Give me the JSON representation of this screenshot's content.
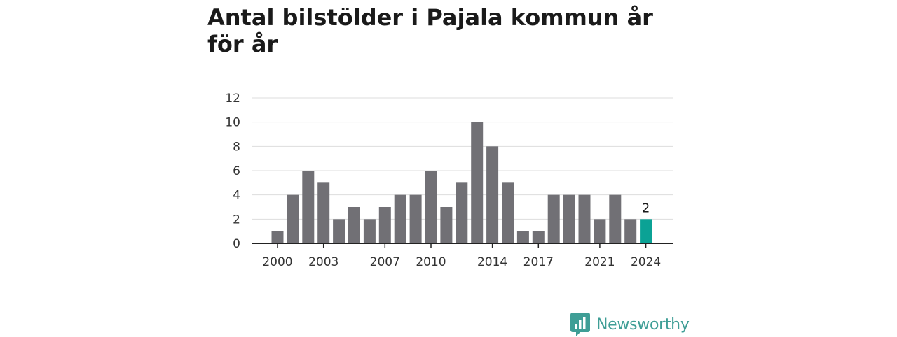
{
  "title": "Antal bilstölder i Pajala kommun år för år",
  "brand": {
    "name": "Newsworthy",
    "icon": "newsworthy-logo-icon",
    "color": "#3f9e96"
  },
  "colors": {
    "bar": "#717075",
    "highlight": "#0ba295",
    "grid": "#dddddd",
    "axis": "#222222"
  },
  "chart_data": {
    "type": "bar",
    "title": "Antal bilstölder i Pajala kommun år för år",
    "xlabel": "",
    "ylabel": "",
    "categories": [
      "2000",
      "2001",
      "2002",
      "2003",
      "2004",
      "2005",
      "2006",
      "2007",
      "2008",
      "2009",
      "2010",
      "2011",
      "2012",
      "2013",
      "2014",
      "2015",
      "2016",
      "2017",
      "2018",
      "2019",
      "2020",
      "2021",
      "2022",
      "2023",
      "2024"
    ],
    "values": [
      1,
      4,
      6,
      5,
      2,
      3,
      2,
      3,
      4,
      4,
      6,
      3,
      5,
      10,
      8,
      5,
      1,
      1,
      4,
      4,
      4,
      2,
      4,
      2,
      2
    ],
    "ylim": [
      0,
      12
    ],
    "yticks": [
      0,
      2,
      4,
      6,
      8,
      10,
      12
    ],
    "xticks": [
      "2000",
      "2003",
      "2007",
      "2010",
      "2014",
      "2017",
      "2021",
      "2024"
    ],
    "highlight": {
      "category": "2024",
      "label": "2"
    },
    "grid": true,
    "legend": "none"
  }
}
